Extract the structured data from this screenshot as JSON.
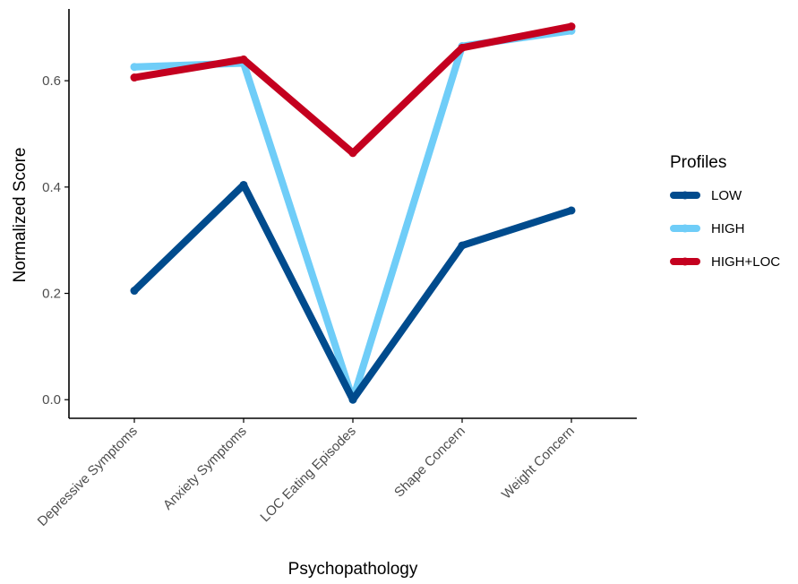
{
  "chart_data": {
    "type": "line",
    "title": "",
    "xlabel": "Psychopathology",
    "ylabel": "Normalized Score",
    "categories": [
      "Depressive Symptoms",
      "Anxiety Symptoms",
      "LOC Eating Episodes",
      "Shape Concern",
      "Weight Concern"
    ],
    "y_ticks": [
      "0.0",
      "0.2",
      "0.4",
      "0.6"
    ],
    "ylim": [
      -0.035,
      0.735
    ],
    "grid": false,
    "legend": {
      "title": "Profiles",
      "position": "right"
    },
    "series": [
      {
        "name": "LOW",
        "color": "#004B8D",
        "values": [
          0.205,
          0.404,
          0.0,
          0.29,
          0.356
        ]
      },
      {
        "name": "HIGH",
        "color": "#6FCDF8",
        "values": [
          0.626,
          0.633,
          0.0,
          0.665,
          0.694
        ]
      },
      {
        "name": "HIGH+LOC",
        "color": "#C4001F",
        "values": [
          0.606,
          0.64,
          0.464,
          0.662,
          0.702
        ]
      }
    ]
  }
}
